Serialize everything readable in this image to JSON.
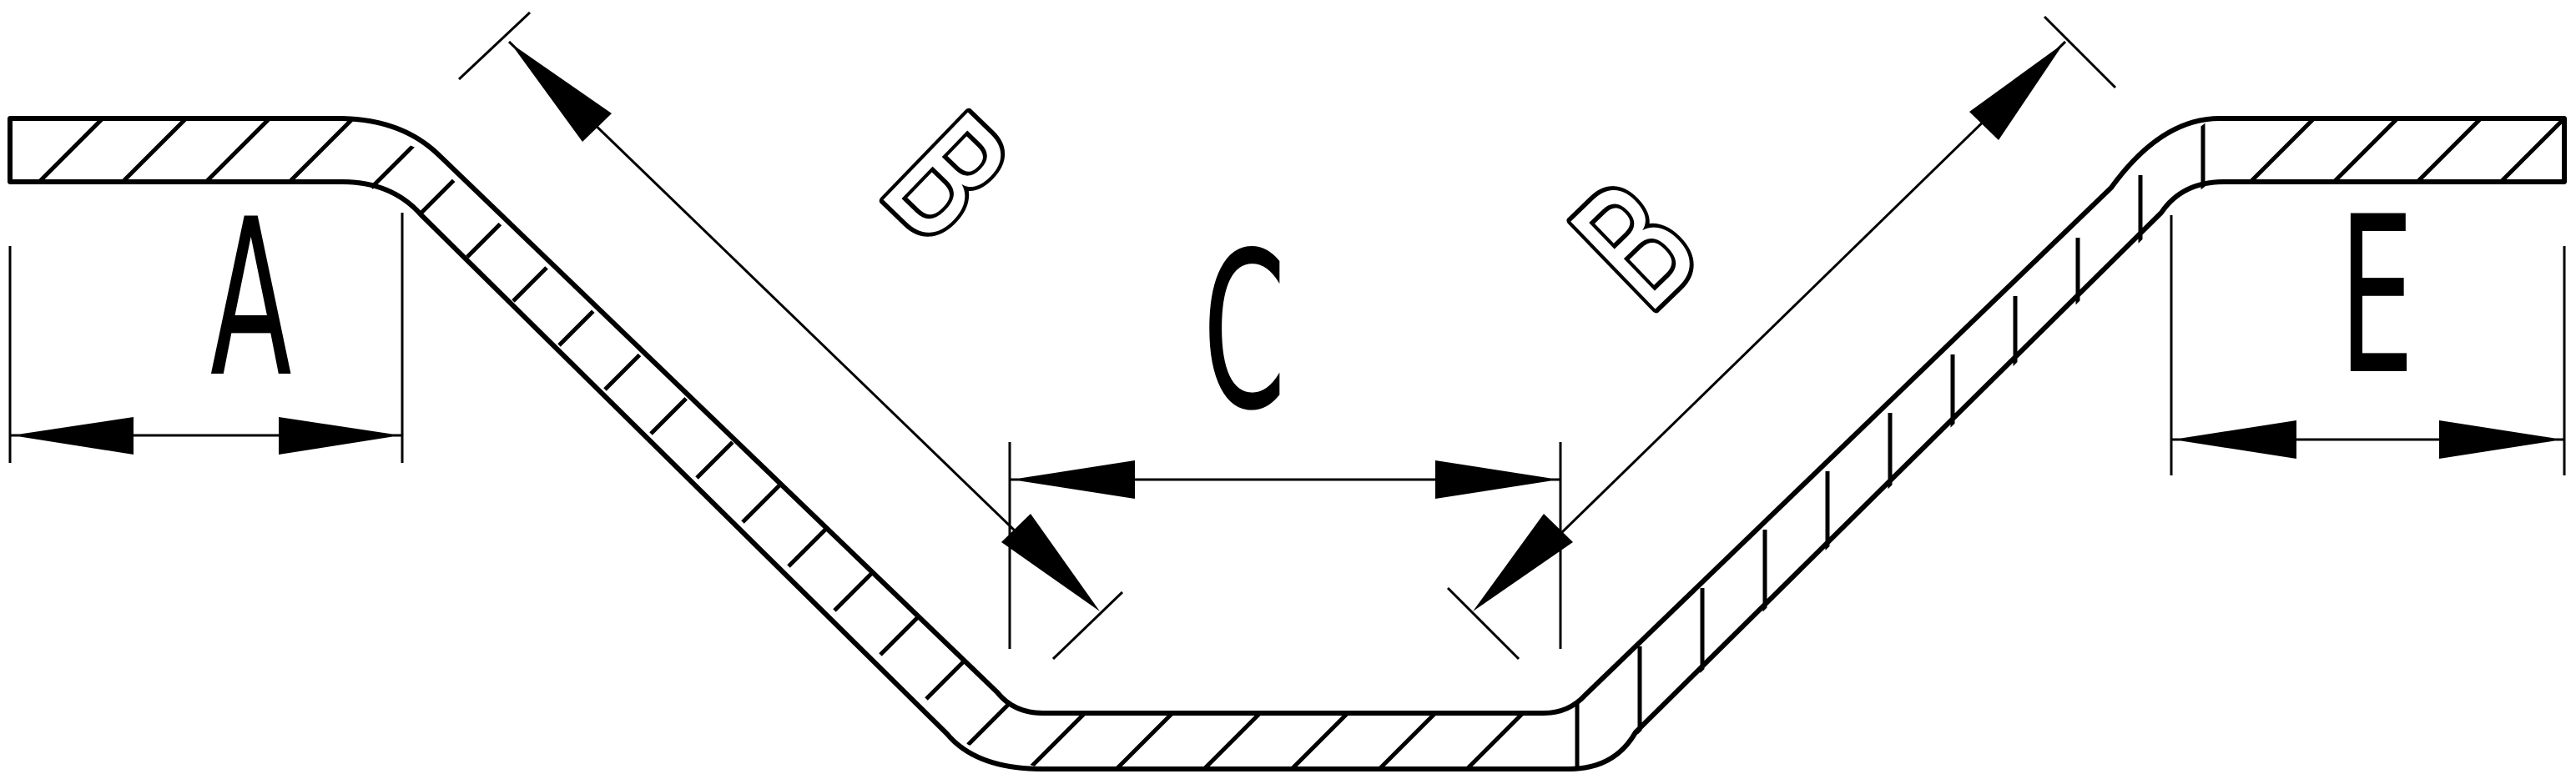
{
  "dimensions": {
    "a": "A",
    "b_left": "B",
    "c": "C",
    "b_right": "B",
    "e": "E"
  },
  "colors": {
    "line": "#000000",
    "background": "#ffffff"
  }
}
